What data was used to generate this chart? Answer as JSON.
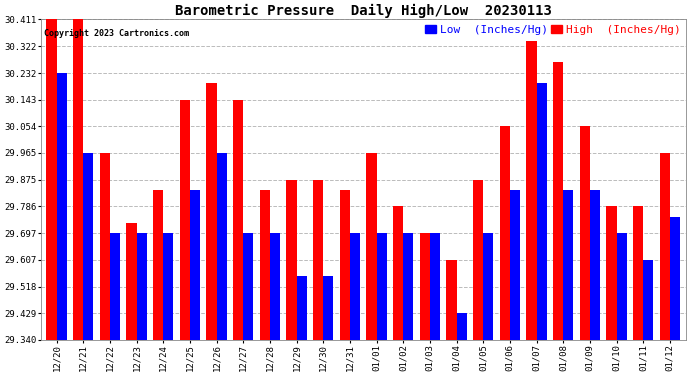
{
  "title": "Barometric Pressure  Daily High/Low  20230113",
  "copyright": "Copyright 2023 Cartronics.com",
  "legend_low": "Low  (Inches/Hg)",
  "legend_high": "High  (Inches/Hg)",
  "dates": [
    "12/20",
    "12/21",
    "12/22",
    "12/23",
    "12/24",
    "12/25",
    "12/26",
    "12/27",
    "12/28",
    "12/29",
    "12/30",
    "12/31",
    "01/01",
    "01/02",
    "01/03",
    "01/04",
    "01/05",
    "01/06",
    "01/07",
    "01/08",
    "01/09",
    "01/10",
    "01/11",
    "01/12"
  ],
  "high_values": [
    30.411,
    30.411,
    29.965,
    29.73,
    29.84,
    30.143,
    30.2,
    30.143,
    29.84,
    29.875,
    29.875,
    29.84,
    29.965,
    29.786,
    29.697,
    29.607,
    29.875,
    30.054,
    30.34,
    30.27,
    30.054,
    29.786,
    29.786,
    29.965
  ],
  "low_values": [
    30.232,
    29.965,
    29.697,
    29.697,
    29.697,
    29.84,
    29.965,
    29.697,
    29.697,
    29.554,
    29.554,
    29.697,
    29.697,
    29.697,
    29.697,
    29.429,
    29.697,
    29.84,
    30.197,
    29.84,
    29.84,
    29.697,
    29.607,
    29.75
  ],
  "ymin": 29.34,
  "ymax": 30.411,
  "yticks": [
    29.34,
    29.429,
    29.518,
    29.607,
    29.697,
    29.786,
    29.875,
    29.965,
    30.054,
    30.143,
    30.232,
    30.322,
    30.411
  ],
  "bar_width": 0.38,
  "low_color": "#0000FF",
  "high_color": "#FF0000",
  "bg_color": "#FFFFFF",
  "grid_color": "#BBBBBB",
  "title_fontsize": 10,
  "tick_fontsize": 6.5,
  "legend_fontsize": 8
}
